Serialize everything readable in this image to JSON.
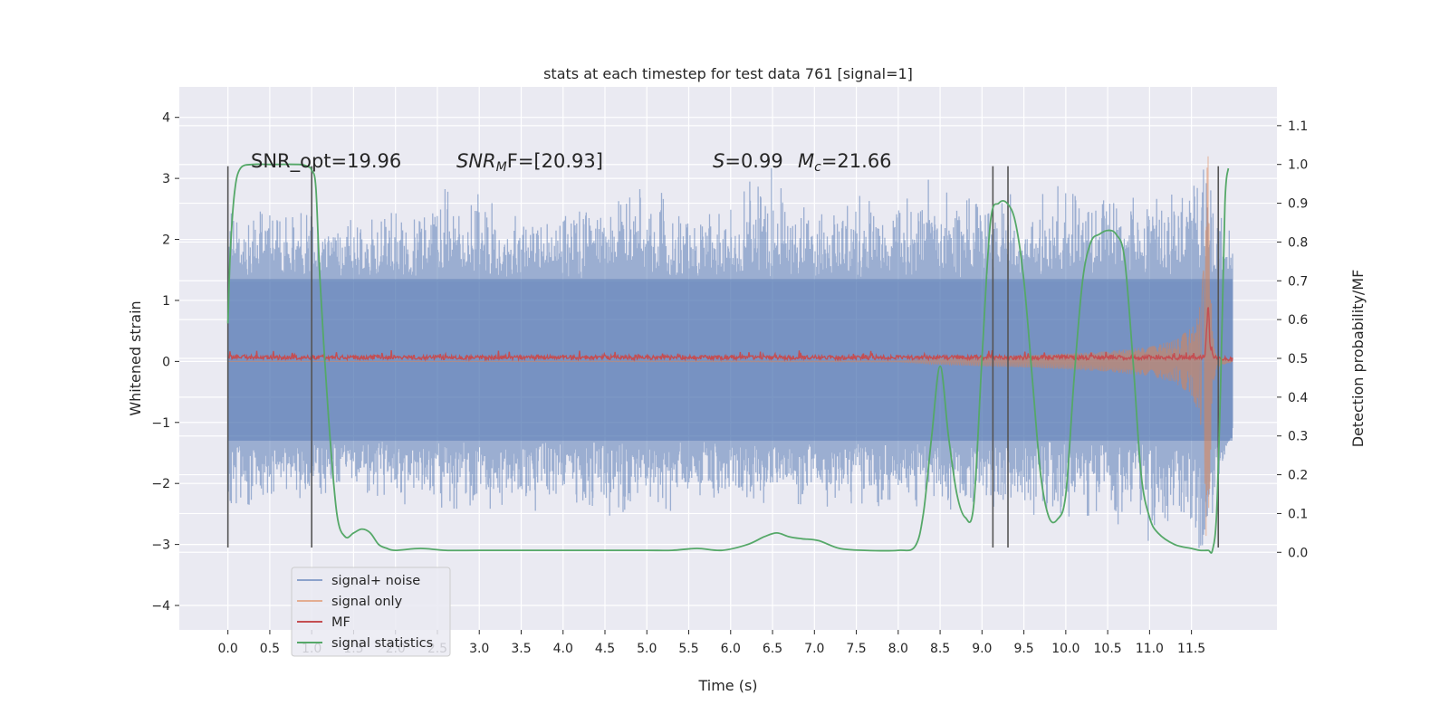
{
  "chart_data": {
    "type": "line",
    "title": "stats at each timestep for test data 761 [signal=1]",
    "xlabel": "Time (s)",
    "ylabel_left": "Whitened strain",
    "ylabel_right": "Detection probability/MF",
    "xlim": [
      -0.58,
      12.52
    ],
    "ylim_left": [
      -4.4,
      4.5
    ],
    "ylim_right": [
      -0.2,
      1.2
    ],
    "x_ticks": [
      "0.0",
      "0.5",
      "1.0",
      "1.5",
      "2.0",
      "2.5",
      "3.0",
      "3.5",
      "4.0",
      "4.5",
      "5.0",
      "5.5",
      "6.0",
      "6.5",
      "7.0",
      "7.5",
      "8.0",
      "8.5",
      "9.0",
      "9.5",
      "10.0",
      "10.5",
      "11.0",
      "11.5"
    ],
    "y_ticks_left": [
      "4",
      "3",
      "2",
      "1",
      "0",
      "−1",
      "−2",
      "−3",
      "−4"
    ],
    "y_ticks_right": [
      "1.1",
      "1.0",
      "0.9",
      "0.8",
      "0.7",
      "0.6",
      "0.5",
      "0.4",
      "0.3",
      "0.2",
      "0.1",
      "0.0"
    ],
    "grid": true,
    "legend_position": "lower-left",
    "annotations": {
      "snr_opt": "SNR_opt=19.96",
      "snr_mf_sym": "SNR",
      "snr_mf_sub": "M",
      "snr_mf_rest": "F=[20.93]",
      "s_sym": "S",
      "s_rest": "=0.99",
      "mc_sym": "M",
      "mc_sub": "c",
      "mc_rest": "=21.66"
    },
    "series": [
      {
        "name": "signal+ noise",
        "axis": "left",
        "color": "#4c72b0",
        "envelope_x": [
          0,
          0.5,
          1,
          1.5,
          2,
          2.5,
          3,
          3.5,
          4,
          4.5,
          5,
          5.5,
          6,
          6.5,
          7,
          7.5,
          8,
          8.5,
          9,
          9.5,
          10,
          10.5,
          11,
          11.5,
          11.65,
          11.7,
          11.75,
          11.8,
          11.99
        ],
        "envelope_upper": [
          2.5,
          2.6,
          2.9,
          2.6,
          2.7,
          2.9,
          3.0,
          2.5,
          2.6,
          2.7,
          2.9,
          2.6,
          2.8,
          3.25,
          2.6,
          2.8,
          2.7,
          3.25,
          2.9,
          2.8,
          3.0,
          2.9,
          2.7,
          3.1,
          4.1,
          3.6,
          3.0,
          2.6,
          2.2
        ],
        "envelope_lower": [
          -2.7,
          -2.3,
          -2.5,
          -2.2,
          -2.4,
          -2.5,
          -2.6,
          -2.5,
          -2.4,
          -2.6,
          -2.7,
          -2.4,
          -2.5,
          -2.4,
          -2.5,
          -2.6,
          -2.4,
          -2.6,
          -2.5,
          -2.5,
          -2.8,
          -2.5,
          -3.2,
          -2.9,
          -3.9,
          -3.5,
          -2.9,
          -2.4,
          -1.0
        ],
        "dense_band": [
          -1.3,
          1.35
        ]
      },
      {
        "name": "signal only",
        "axis": "left",
        "color": "#dd8452",
        "x": [
          0,
          8,
          8.5,
          9,
          9.5,
          10,
          10.5,
          11,
          11.3,
          11.5,
          11.6,
          11.65,
          11.68,
          11.7,
          11.72,
          11.75,
          11.8,
          11.99
        ],
        "amplitude": [
          0,
          0.01,
          0.05,
          0.08,
          0.1,
          0.13,
          0.17,
          0.24,
          0.35,
          0.55,
          0.9,
          1.6,
          3.3,
          3.4,
          2.0,
          0.5,
          0.1,
          0
        ]
      },
      {
        "name": "MF",
        "axis": "left",
        "color": "#c44e52",
        "x": [
          0,
          11.6,
          11.66,
          11.68,
          11.7,
          11.72,
          11.76,
          11.99
        ],
        "values": [
          0.08,
          0.08,
          0.1,
          0.5,
          1.0,
          0.3,
          0.08,
          0.05
        ],
        "noise_amplitude": 0.07
      },
      {
        "name": "signal statistics",
        "axis": "right",
        "color": "#55a868",
        "x": [
          0,
          0.03,
          0.08,
          0.15,
          0.3,
          0.5,
          0.85,
          0.95,
          1.0,
          1.05,
          1.1,
          1.2,
          1.3,
          1.4,
          1.5,
          1.6,
          1.7,
          1.8,
          1.9,
          2.0,
          2.3,
          2.6,
          3.0,
          4.0,
          4.5,
          5.0,
          5.3,
          5.6,
          5.9,
          6.2,
          6.4,
          6.55,
          6.7,
          6.85,
          7.05,
          7.3,
          7.6,
          8.0,
          8.2,
          8.3,
          8.4,
          8.5,
          8.6,
          8.7,
          8.8,
          8.9,
          9.0,
          9.1,
          9.2,
          9.3,
          9.4,
          9.5,
          9.6,
          9.7,
          9.8,
          9.9,
          10.0,
          10.1,
          10.2,
          10.3,
          10.4,
          10.5,
          10.6,
          10.7,
          10.8,
          10.9,
          11.0,
          11.1,
          11.3,
          11.5,
          11.6,
          11.7,
          11.75,
          11.8,
          11.85,
          11.9,
          11.94
        ],
        "values": [
          0.59,
          0.78,
          0.93,
          0.99,
          1.0,
          1.0,
          1.0,
          0.995,
          0.985,
          0.94,
          0.7,
          0.35,
          0.1,
          0.04,
          0.05,
          0.06,
          0.05,
          0.02,
          0.01,
          0.005,
          0.01,
          0.005,
          0.005,
          0.005,
          0.005,
          0.005,
          0.005,
          0.01,
          0.005,
          0.02,
          0.04,
          0.05,
          0.04,
          0.035,
          0.03,
          0.01,
          0.005,
          0.005,
          0.015,
          0.1,
          0.3,
          0.48,
          0.3,
          0.15,
          0.09,
          0.12,
          0.5,
          0.85,
          0.9,
          0.9,
          0.85,
          0.7,
          0.45,
          0.2,
          0.09,
          0.085,
          0.15,
          0.45,
          0.7,
          0.8,
          0.82,
          0.83,
          0.82,
          0.76,
          0.5,
          0.2,
          0.09,
          0.05,
          0.02,
          0.01,
          0.005,
          0.005,
          0.005,
          0.1,
          0.45,
          0.9,
          0.99
        ]
      }
    ],
    "vertical_markers": {
      "color": "#555555",
      "x": [
        0.0,
        1.0,
        9.13,
        9.31,
        11.82
      ],
      "from_y": -3.05,
      "to_y": 3.2
    }
  }
}
